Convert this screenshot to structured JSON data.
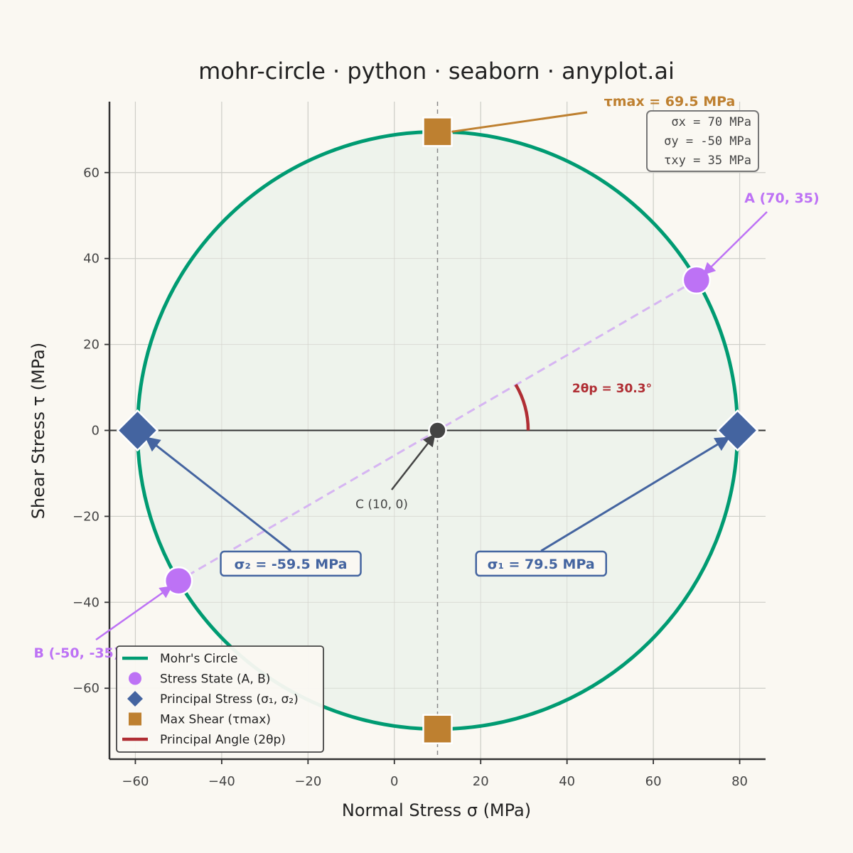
{
  "chart_data": {
    "type": "scatter",
    "title": "mohr-circle · python · seaborn · anyplot.ai",
    "xlabel": "Normal Stress σ (MPa)",
    "ylabel": "Shear Stress τ (MPa)",
    "xlim": [
      -66,
      86
    ],
    "ylim": [
      -76.5,
      76.5
    ],
    "xticks": [
      -60,
      -40,
      -20,
      0,
      20,
      40,
      60,
      80
    ],
    "yticks": [
      -60,
      -40,
      -20,
      0,
      20,
      40,
      60
    ],
    "grid": true,
    "legend_position": "lower-left",
    "circle": {
      "center": [
        10,
        0
      ],
      "radius": 69.5
    },
    "stress_points": [
      {
        "x": 70,
        "y": 35,
        "label": "A (70, 35)"
      },
      {
        "x": -50,
        "y": -35,
        "label": "B (-50, -35)"
      }
    ],
    "principal_points": [
      {
        "x": 79.5,
        "y": 0,
        "label": "σ₁ = 79.5 MPa",
        "label_x": 34,
        "label_y": -31
      },
      {
        "x": -59.5,
        "y": 0,
        "label": "σ₂ = -59.5 MPa",
        "label_x": -24,
        "label_y": -31
      }
    ],
    "max_shear_points": [
      {
        "x": 10,
        "y": 69.5
      },
      {
        "x": 10,
        "y": -69.5
      }
    ],
    "max_shear_label": "τmax = 69.5 MPa",
    "center_label": "C (10, 0)",
    "angle_label": "2θp = 30.3°",
    "angle_deg": 30.3,
    "stress_box": [
      "σx = 70 MPa",
      "σy = -50 MPa",
      "τxy = 35 MPa"
    ],
    "legend": [
      {
        "label": "Mohr's Circle",
        "symbol": "line",
        "color": "#009B72"
      },
      {
        "label": "Stress State (A, B)",
        "symbol": "circle",
        "color": "#BD72F5"
      },
      {
        "label": "Principal Stress (σ₁, σ₂)",
        "symbol": "diamond",
        "color": "#4464A0"
      },
      {
        "label": "Max Shear (τmax)",
        "symbol": "square",
        "color": "#BE8030"
      },
      {
        "label": "Principal Angle (2θp)",
        "symbol": "line",
        "color": "#B02E34"
      }
    ]
  },
  "colors": {
    "background": "#FAF8F2",
    "circle": "#009B72",
    "circle_fill": "#EDF2EB",
    "stress": "#BD72F5",
    "principal": "#4464A0",
    "max_shear": "#BE8030",
    "angle": "#B02E34",
    "axis": "#444444"
  }
}
